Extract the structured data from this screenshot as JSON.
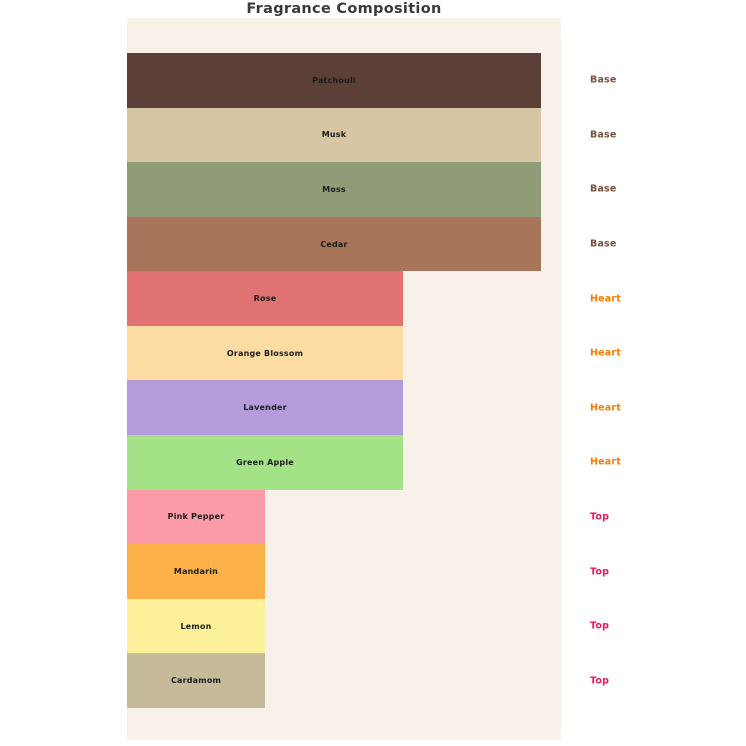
{
  "title": "Fragrance Composition",
  "colors": {
    "background": "#FFFFFF",
    "plot_background": "#F7F1EA",
    "title_text": "#3A3A3A",
    "bar_label_text": "#1C1C1C",
    "group_label_colors": {
      "Base": "#75503E",
      "Heart": "#F57C00",
      "Top": "#E5185E"
    }
  },
  "chart_data": {
    "type": "bar",
    "orientation": "horizontal",
    "title": "Fragrance Composition",
    "xlabel": "",
    "ylabel": "",
    "grid": false,
    "legend_position": "none",
    "axis_ticks_visible": false,
    "xlim": [
      0,
      3.15
    ],
    "categories": [
      "Patchouli",
      "Musk",
      "Moss",
      "Cedar",
      "Rose",
      "Orange Blossom",
      "Lavender",
      "Green Apple",
      "Pink Pepper",
      "Mandarin",
      "Lemon",
      "Cardamom"
    ],
    "values": [
      3,
      3,
      3,
      3,
      2,
      2,
      2,
      2,
      1,
      1,
      1,
      1
    ],
    "groups": [
      "Base",
      "Base",
      "Base",
      "Base",
      "Heart",
      "Heart",
      "Heart",
      "Heart",
      "Top",
      "Top",
      "Top",
      "Top"
    ],
    "bar_colors": [
      "#5C4038",
      "#D6C6A3",
      "#8F9C77",
      "#A9755A",
      "#E07272",
      "#FDDCA3",
      "#B39CD9",
      "#A4E287",
      "#FD9CA8",
      "#FDB148",
      "#FDF29B",
      "#C5BB9B"
    ],
    "bar_label_position": "center",
    "group_label_position": "right-of-plot"
  }
}
